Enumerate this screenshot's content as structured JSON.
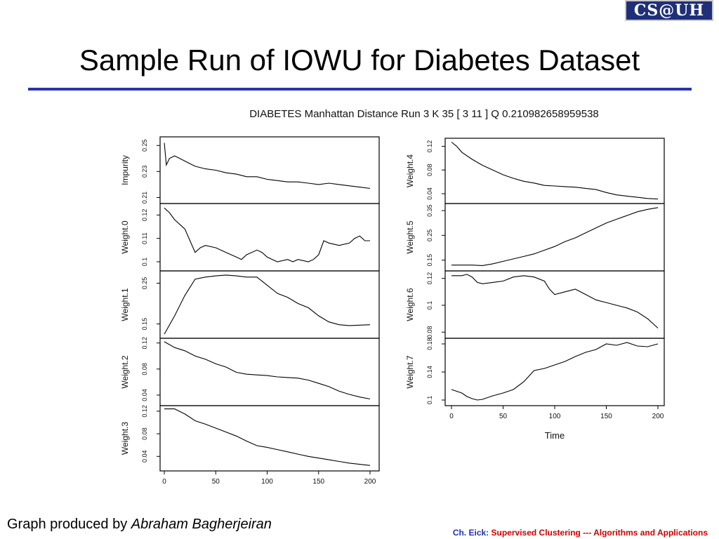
{
  "slide": {
    "logo_text": "CS@UH",
    "title": "Sample Run of IOWU for Diabetes Dataset",
    "credit_prefix": "Graph produced by",
    "credit_author": "Abraham Bagherjeiran",
    "footer_author": "Ch. Eick",
    "footer_sep": ":",
    "footer_course": "Supervised Clustering --- Algorithms and Applications"
  },
  "chart_data": {
    "type": "line",
    "title": "DIABETES Manhattan Distance Run 3 K 35 [ 3 11 ] Q 0.210982658959538",
    "xlabel": "Time",
    "xlim": [
      0,
      200
    ],
    "xticks": [
      0,
      50,
      100,
      150,
      200
    ],
    "panels": [
      {
        "name": "Impurity",
        "column": "left",
        "ylim": [
          0.207,
          0.255
        ],
        "yticks": [
          0.21,
          0.23,
          0.25
        ],
        "x": [
          0,
          2,
          5,
          10,
          15,
          20,
          25,
          30,
          40,
          50,
          60,
          70,
          80,
          90,
          100,
          110,
          120,
          130,
          140,
          150,
          160,
          170,
          180,
          190,
          200
        ],
        "y": [
          0.252,
          0.235,
          0.24,
          0.242,
          0.24,
          0.238,
          0.236,
          0.234,
          0.232,
          0.231,
          0.229,
          0.228,
          0.226,
          0.226,
          0.224,
          0.223,
          0.222,
          0.222,
          0.221,
          0.22,
          0.221,
          0.22,
          0.219,
          0.218,
          0.217
        ]
      },
      {
        "name": "Weight.0",
        "column": "left",
        "ylim": [
          0.097,
          0.124
        ],
        "yticks": [
          0.1,
          0.11,
          0.12
        ],
        "x": [
          0,
          5,
          10,
          15,
          20,
          25,
          30,
          35,
          40,
          50,
          60,
          70,
          75,
          80,
          90,
          95,
          100,
          105,
          110,
          120,
          125,
          130,
          140,
          145,
          150,
          155,
          160,
          170,
          180,
          185,
          190,
          195,
          200
        ],
        "y": [
          0.123,
          0.121,
          0.118,
          0.116,
          0.114,
          0.109,
          0.104,
          0.106,
          0.107,
          0.106,
          0.104,
          0.102,
          0.101,
          0.103,
          0.105,
          0.104,
          0.102,
          0.101,
          0.1,
          0.101,
          0.1,
          0.101,
          0.1,
          0.101,
          0.103,
          0.109,
          0.108,
          0.107,
          0.108,
          0.11,
          0.111,
          0.109,
          0.109
        ]
      },
      {
        "name": "Weight.1",
        "column": "left",
        "ylim": [
          0.12,
          0.275
        ],
        "yticks": [
          0.15,
          0.25
        ],
        "x": [
          0,
          10,
          20,
          30,
          40,
          50,
          60,
          70,
          80,
          90,
          100,
          110,
          120,
          130,
          140,
          150,
          160,
          170,
          180,
          190,
          200
        ],
        "y": [
          0.125,
          0.17,
          0.22,
          0.26,
          0.265,
          0.268,
          0.27,
          0.268,
          0.265,
          0.265,
          0.245,
          0.225,
          0.215,
          0.2,
          0.19,
          0.17,
          0.155,
          0.148,
          0.146,
          0.147,
          0.148
        ]
      },
      {
        "name": "Weight.2",
        "column": "left",
        "ylim": [
          0.027,
          0.124
        ],
        "yticks": [
          0.04,
          0.08,
          0.12
        ],
        "x": [
          0,
          10,
          20,
          30,
          40,
          50,
          60,
          70,
          80,
          90,
          100,
          110,
          120,
          130,
          140,
          150,
          160,
          170,
          180,
          190,
          200
        ],
        "y": [
          0.122,
          0.113,
          0.108,
          0.1,
          0.095,
          0.088,
          0.083,
          0.075,
          0.072,
          0.071,
          0.07,
          0.068,
          0.067,
          0.066,
          0.063,
          0.058,
          0.053,
          0.046,
          0.041,
          0.037,
          0.034
        ]
      },
      {
        "name": "Weight.3",
        "column": "left",
        "ylim": [
          0.018,
          0.126
        ],
        "yticks": [
          0.04,
          0.08,
          0.12
        ],
        "x": [
          0,
          10,
          20,
          30,
          40,
          50,
          60,
          70,
          80,
          90,
          100,
          110,
          120,
          130,
          140,
          150,
          160,
          170,
          180,
          190,
          200
        ],
        "y": [
          0.124,
          0.124,
          0.115,
          0.103,
          0.097,
          0.09,
          0.083,
          0.076,
          0.067,
          0.059,
          0.056,
          0.052,
          0.048,
          0.044,
          0.04,
          0.037,
          0.034,
          0.031,
          0.028,
          0.026,
          0.024
        ]
      },
      {
        "name": "Weight.4",
        "column": "right",
        "ylim": [
          0.027,
          0.13
        ],
        "yticks": [
          0.04,
          0.08,
          0.12
        ],
        "x": [
          0,
          5,
          10,
          20,
          30,
          40,
          50,
          60,
          70,
          80,
          90,
          100,
          110,
          120,
          130,
          140,
          150,
          160,
          170,
          180,
          190,
          200
        ],
        "y": [
          0.127,
          0.12,
          0.11,
          0.098,
          0.088,
          0.08,
          0.072,
          0.066,
          0.061,
          0.058,
          0.054,
          0.053,
          0.052,
          0.051,
          0.049,
          0.047,
          0.042,
          0.038,
          0.036,
          0.034,
          0.032,
          0.031
        ]
      },
      {
        "name": "Weight.5",
        "column": "right",
        "ylim": [
          0.115,
          0.37
        ],
        "yticks": [
          0.15,
          0.25,
          0.35
        ],
        "x": [
          0,
          10,
          20,
          30,
          40,
          50,
          60,
          70,
          80,
          90,
          100,
          110,
          120,
          130,
          140,
          150,
          160,
          170,
          180,
          190,
          200
        ],
        "y": [
          0.13,
          0.13,
          0.13,
          0.128,
          0.135,
          0.145,
          0.155,
          0.165,
          0.175,
          0.19,
          0.205,
          0.225,
          0.24,
          0.26,
          0.28,
          0.3,
          0.315,
          0.33,
          0.345,
          0.355,
          0.362
        ]
      },
      {
        "name": "Weight.6",
        "column": "right",
        "ylim": [
          0.077,
          0.124
        ],
        "yticks": [
          0.08,
          0.1,
          0.12
        ],
        "x": [
          0,
          10,
          15,
          20,
          25,
          30,
          40,
          50,
          60,
          70,
          80,
          90,
          95,
          100,
          110,
          120,
          130,
          140,
          150,
          160,
          170,
          180,
          190,
          200
        ],
        "y": [
          0.122,
          0.122,
          0.123,
          0.121,
          0.117,
          0.116,
          0.117,
          0.118,
          0.121,
          0.122,
          0.121,
          0.118,
          0.112,
          0.108,
          0.11,
          0.112,
          0.108,
          0.104,
          0.102,
          0.1,
          0.098,
          0.095,
          0.09,
          0.083
        ]
      },
      {
        "name": "Weight.7",
        "column": "right",
        "ylim": [
          0.095,
          0.185
        ],
        "yticks": [
          0.1,
          0.14,
          0.18
        ],
        "x": [
          0,
          10,
          15,
          20,
          25,
          30,
          40,
          50,
          60,
          70,
          80,
          90,
          100,
          110,
          120,
          130,
          140,
          150,
          160,
          170,
          180,
          190,
          200
        ],
        "y": [
          0.115,
          0.11,
          0.105,
          0.102,
          0.1,
          0.101,
          0.106,
          0.11,
          0.115,
          0.126,
          0.142,
          0.145,
          0.15,
          0.155,
          0.162,
          0.168,
          0.172,
          0.18,
          0.178,
          0.182,
          0.177,
          0.176,
          0.18
        ]
      }
    ]
  }
}
